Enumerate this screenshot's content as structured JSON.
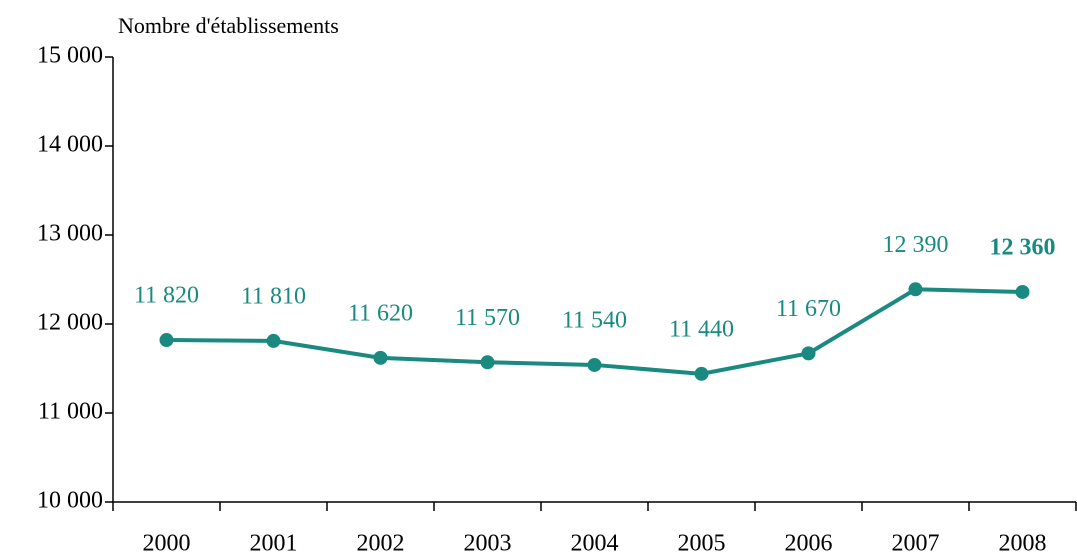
{
  "chart_data": {
    "type": "line",
    "y_axis_label": "Nombre d'établissements",
    "categories": [
      "2000",
      "2001",
      "2002",
      "2003",
      "2004",
      "2005",
      "2006",
      "2007",
      "2008"
    ],
    "series": [
      {
        "name": "Nombre d'établissements",
        "color": "#1a8a80",
        "values": [
          11820,
          11810,
          11620,
          11570,
          11540,
          11440,
          11670,
          12390,
          12360
        ],
        "value_labels": [
          "11 820",
          "11 810",
          "11 620",
          "11 570",
          "11 540",
          "11 440",
          "11 670",
          "12 390",
          "12 360"
        ]
      }
    ],
    "ylim": [
      10000,
      15000
    ],
    "yticks": [
      {
        "value": 10000,
        "label": "10 000"
      },
      {
        "value": 11000,
        "label": "11 000"
      },
      {
        "value": 12000,
        "label": "12 000"
      },
      {
        "value": 13000,
        "label": "13 000"
      },
      {
        "value": 14000,
        "label": "14 000"
      },
      {
        "value": 15000,
        "label": "15 000"
      }
    ],
    "grid": false
  }
}
